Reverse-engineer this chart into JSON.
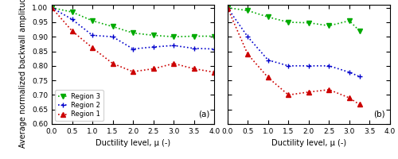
{
  "subplot_a": {
    "region3": {
      "x": [
        0.0,
        0.5,
        1.0,
        1.5,
        2.0,
        2.5,
        3.0,
        3.5,
        4.0
      ],
      "y": [
        1.0,
        0.985,
        0.955,
        0.935,
        0.913,
        0.905,
        0.9,
        0.902,
        0.902
      ]
    },
    "region2": {
      "x": [
        0.0,
        0.5,
        1.0,
        1.5,
        2.0,
        2.5,
        3.0,
        3.5,
        4.0
      ],
      "y": [
        1.0,
        0.96,
        0.905,
        0.9,
        0.858,
        0.865,
        0.87,
        0.86,
        0.858
      ]
    },
    "region1": {
      "x": [
        0.0,
        0.5,
        1.0,
        1.5,
        2.0,
        2.5,
        3.0,
        3.5,
        4.0
      ],
      "y": [
        1.0,
        0.92,
        0.862,
        0.808,
        0.78,
        0.79,
        0.808,
        0.79,
        0.778
      ]
    }
  },
  "subplot_b": {
    "region3": {
      "x": [
        0.0,
        0.5,
        1.0,
        1.5,
        2.0,
        2.5,
        3.0,
        3.25
      ],
      "y": [
        1.0,
        0.99,
        0.968,
        0.95,
        0.948,
        0.938,
        0.955,
        0.92
      ]
    },
    "region2": {
      "x": [
        0.0,
        0.5,
        1.0,
        1.5,
        2.0,
        2.5,
        3.0,
        3.25
      ],
      "y": [
        1.0,
        0.9,
        0.82,
        0.8,
        0.8,
        0.8,
        0.778,
        0.763
      ]
    },
    "region1": {
      "x": [
        0.0,
        0.5,
        1.0,
        1.5,
        2.0,
        2.5,
        3.0,
        3.25
      ],
      "y": [
        1.0,
        0.84,
        0.76,
        0.7,
        0.71,
        0.718,
        0.69,
        0.667
      ]
    }
  },
  "colors": {
    "region3": "#00aa00",
    "region2": "#0000cc",
    "region1": "#cc0000"
  },
  "markers": {
    "region3": "v",
    "region2": "+",
    "region1": "^"
  },
  "ylabel": "Average normalized backwall amplitude (-)",
  "xlabel": "Ductility level, μ (-)",
  "ylim": [
    0.6,
    1.01
  ],
  "xlim": [
    0.0,
    4.0
  ],
  "yticks": [
    0.6,
    0.65,
    0.7,
    0.75,
    0.8,
    0.85,
    0.9,
    0.95,
    1.0
  ],
  "xticks": [
    0.0,
    0.5,
    1.0,
    1.5,
    2.0,
    2.5,
    3.0,
    3.5,
    4.0
  ],
  "label_a": "(a)",
  "label_b": "(b)",
  "legend_labels": [
    "Region 3",
    "Region 2",
    "Region 1"
  ],
  "legend_keys": [
    "region3",
    "region2",
    "region1"
  ]
}
